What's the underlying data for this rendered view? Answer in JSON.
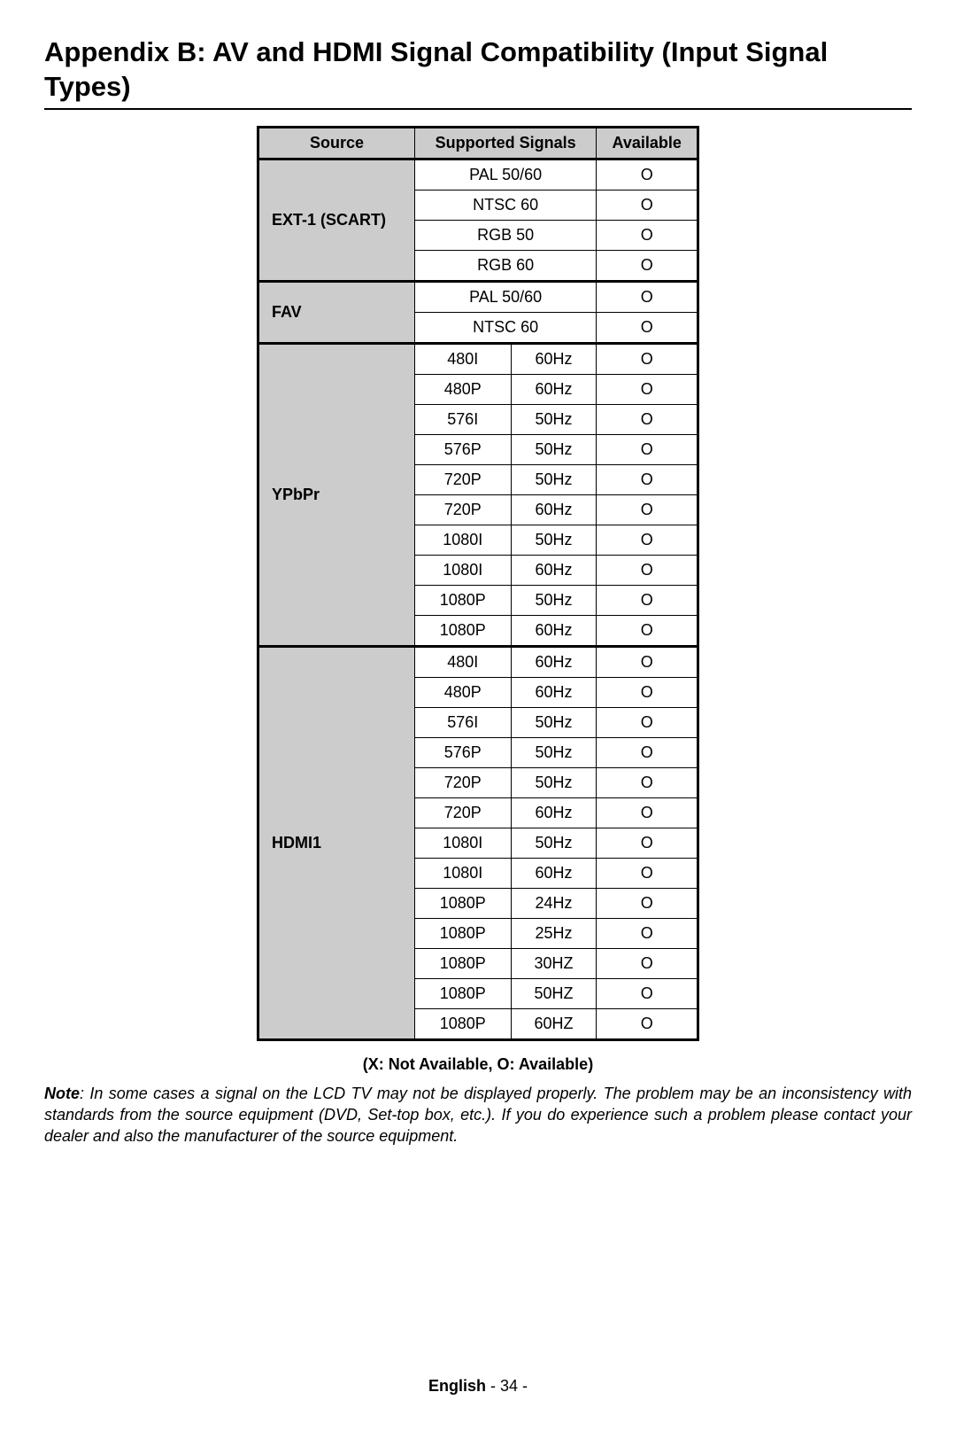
{
  "title": "Appendix B: AV and HDMI Signal Compatibility (Input Signal Types)",
  "columns": {
    "source": "Source",
    "supported": "Supported Signals",
    "available": "Available"
  },
  "groups": [
    {
      "source": "EXT-1 (SCART)",
      "rows": [
        {
          "signal": "PAL 50/60",
          "freq": "",
          "available": "O",
          "span": true
        },
        {
          "signal": "NTSC 60",
          "freq": "",
          "available": "O",
          "span": true
        },
        {
          "signal": "RGB 50",
          "freq": "",
          "available": "O",
          "span": true
        },
        {
          "signal": "RGB 60",
          "freq": "",
          "available": "O",
          "span": true
        }
      ]
    },
    {
      "source": "FAV",
      "rows": [
        {
          "signal": "PAL 50/60",
          "freq": "",
          "available": "O",
          "span": true
        },
        {
          "signal": "NTSC 60",
          "freq": "",
          "available": "O",
          "span": true
        }
      ]
    },
    {
      "source": "YPbPr",
      "rows": [
        {
          "signal": "480I",
          "freq": "60Hz",
          "available": "O"
        },
        {
          "signal": "480P",
          "freq": "60Hz",
          "available": "O"
        },
        {
          "signal": "576I",
          "freq": "50Hz",
          "available": "O"
        },
        {
          "signal": "576P",
          "freq": "50Hz",
          "available": "O"
        },
        {
          "signal": "720P",
          "freq": "50Hz",
          "available": "O"
        },
        {
          "signal": "720P",
          "freq": "60Hz",
          "available": "O"
        },
        {
          "signal": "1080I",
          "freq": "50Hz",
          "available": "O"
        },
        {
          "signal": "1080I",
          "freq": "60Hz",
          "available": "O"
        },
        {
          "signal": "1080P",
          "freq": "50Hz",
          "available": "O"
        },
        {
          "signal": "1080P",
          "freq": "60Hz",
          "available": "O"
        }
      ]
    },
    {
      "source": "HDMI1",
      "rows": [
        {
          "signal": "480I",
          "freq": "60Hz",
          "available": "O"
        },
        {
          "signal": "480P",
          "freq": "60Hz",
          "available": "O"
        },
        {
          "signal": "576I",
          "freq": "50Hz",
          "available": "O"
        },
        {
          "signal": "576P",
          "freq": "50Hz",
          "available": "O"
        },
        {
          "signal": "720P",
          "freq": "50Hz",
          "available": "O"
        },
        {
          "signal": "720P",
          "freq": "60Hz",
          "available": "O"
        },
        {
          "signal": "1080I",
          "freq": "50Hz",
          "available": "O"
        },
        {
          "signal": "1080I",
          "freq": "60Hz",
          "available": "O"
        },
        {
          "signal": "1080P",
          "freq": "24Hz",
          "available": "O"
        },
        {
          "signal": "1080P",
          "freq": "25Hz",
          "available": "O"
        },
        {
          "signal": "1080P",
          "freq": "30HZ",
          "available": "O"
        },
        {
          "signal": "1080P",
          "freq": "50HZ",
          "available": "O"
        },
        {
          "signal": "1080P",
          "freq": "60HZ",
          "available": "O"
        }
      ]
    }
  ],
  "legend": "(X: Not Available, O: Available)",
  "note_label": "Note",
  "note_text": ": In some cases a signal on the LCD TV may not be displayed properly. The problem may be an inconsistency with standards from the source equipment (DVD, Set-top box, etc.). If you do experience such a problem please contact your dealer and also the manufacturer of the source equipment.",
  "footer_lang": "English",
  "footer_page": "   - 34 -"
}
